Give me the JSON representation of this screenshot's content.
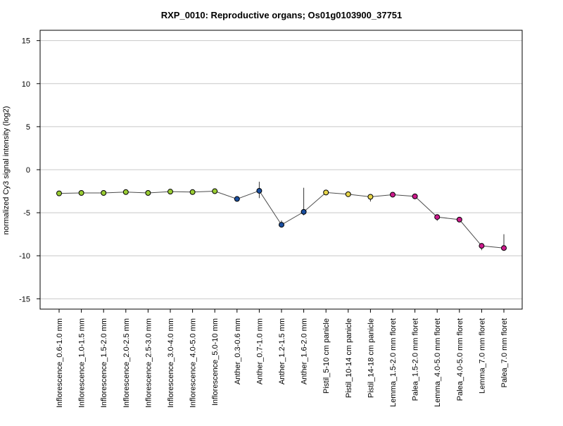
{
  "chart_data": {
    "type": "line",
    "title": "RXP_0010: Reproductive organs; Os01g0103900_37751",
    "xlabel": "",
    "ylabel": "normalized Cy3 signal intensity (log2)",
    "ylim": [
      -16.2,
      16.2
    ],
    "yticks": [
      15,
      10,
      5,
      0,
      -5,
      -10,
      -15
    ],
    "grid": "horizontal",
    "categories": [
      "Inflorescence_0.6-1.0 mm",
      "Inflorescence_1.0-1.5 mm",
      "Inflorescence_1.5-2.0 mm",
      "Inflorescence_2.0-2.5 mm",
      "Inflorescence_2.5-3.0 mm",
      "Inflorescence_3.0-4.0 mm",
      "Inflorescence_4.0-5.0 mm",
      "Inflorescence_5.0-10 mm",
      "Anther_0.3-0.6 mm",
      "Anther_0.7-1.0 mm",
      "Anther_1.2-1.5 mm",
      "Anther_1.6-2.0 mm",
      "Pistil_5-10 cm panicle",
      "Pistil_10-14 cm panicle",
      "Pistil_14-18 cm panicle",
      "Lemma_1.5-2.0 mm floret",
      "Palea_1.5-2.0 mm floret",
      "Lemma_4.0-5.0 mm floret",
      "Palea_4.0-5.0 mm floret",
      "Lemma_7.0 mm floret",
      "Palea_7.0 mm floret"
    ],
    "values": [
      -2.75,
      -2.7,
      -2.7,
      -2.6,
      -2.7,
      -2.55,
      -2.6,
      -2.5,
      -3.4,
      -2.45,
      -6.4,
      -4.9,
      -2.65,
      -2.85,
      -3.15,
      -2.9,
      -3.1,
      -5.5,
      -5.8,
      -8.85,
      -9.1
    ],
    "error_low": [
      -2.9,
      -2.9,
      -2.85,
      -2.75,
      -2.85,
      -2.7,
      -2.75,
      -2.65,
      -3.5,
      -3.3,
      -6.4,
      -5.3,
      -2.95,
      -3.15,
      -3.7,
      -3.15,
      -3.25,
      -5.95,
      -5.95,
      -9.35,
      -9.1
    ],
    "error_high": [
      -2.65,
      -2.6,
      -2.6,
      -2.5,
      -2.6,
      -2.45,
      -2.5,
      -2.4,
      -3.3,
      -1.4,
      -5.9,
      -2.1,
      -2.4,
      -2.6,
      -2.85,
      -2.7,
      -2.95,
      -5.25,
      -5.6,
      -8.6,
      -7.5
    ],
    "point_colors": [
      "#99cc33",
      "#99cc33",
      "#99cc33",
      "#99cc33",
      "#99cc33",
      "#99cc33",
      "#99cc33",
      "#99cc33",
      "#1a4fa0",
      "#1a4fa0",
      "#1a4fa0",
      "#1a4fa0",
      "#e6d44a",
      "#e6d44a",
      "#e6d44a",
      "#cc1a8c",
      "#cc1a8c",
      "#cc1a8c",
      "#cc1a8c",
      "#cc1a8c",
      "#cc1a8c"
    ]
  }
}
